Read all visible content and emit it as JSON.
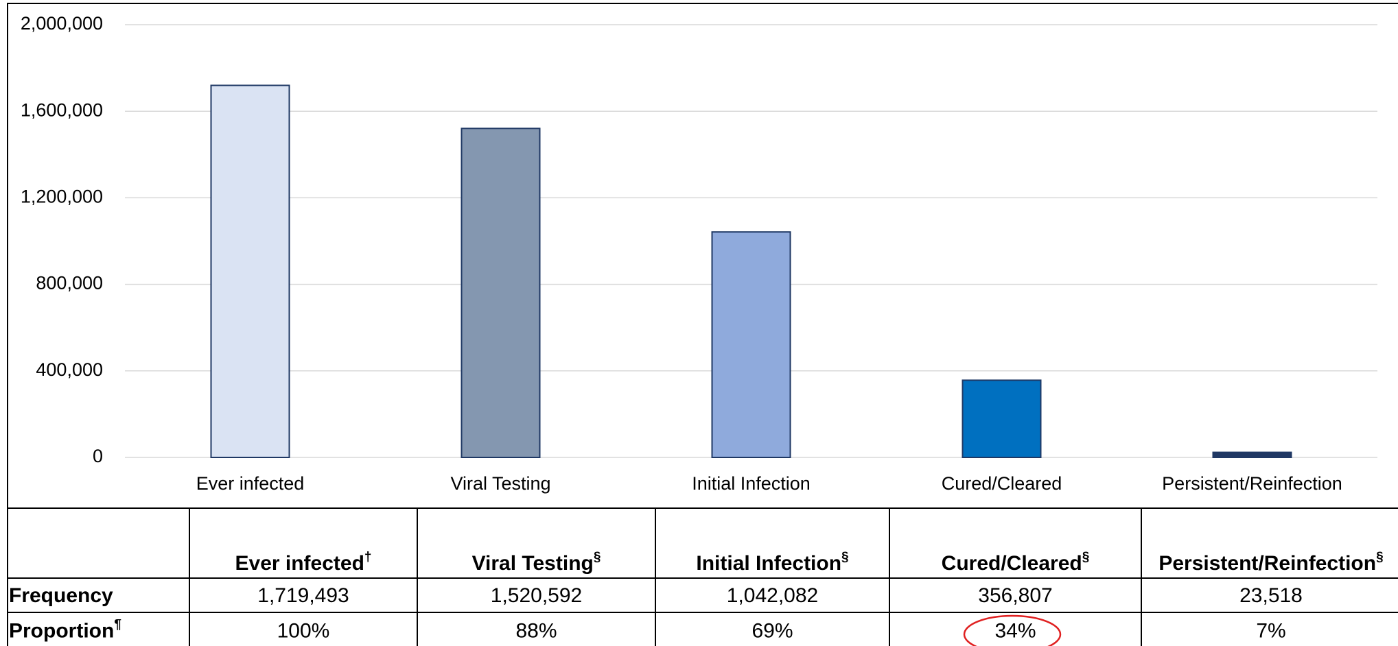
{
  "chart_data": {
    "type": "bar",
    "categories": [
      "Ever infected",
      "Viral Testing",
      "Initial Infection",
      "Cured/Cleared",
      "Persistent/Reinfection"
    ],
    "values": [
      1719493,
      1520592,
      1042082,
      356807,
      23518
    ],
    "colors": [
      "#dae3f3",
      "#8497b0",
      "#8faadc",
      "#0070c0",
      "#203864"
    ],
    "ylim": [
      0,
      2000000
    ],
    "yticks": [
      0,
      {
        "value": 400000,
        "label": "400,000"
      },
      {
        "value": 800000,
        "label": "800,000"
      },
      {
        "value": 1200000,
        "label": "1,200,000"
      },
      {
        "value": 1600000,
        "label": "1,600,000"
      },
      {
        "value": 2000000,
        "label": "2,000,000"
      }
    ],
    "grid": true
  },
  "table": {
    "columns": [
      {
        "label": "Ever infected",
        "note": "†"
      },
      {
        "label": "Viral Testing",
        "note": "§"
      },
      {
        "label": "Initial Infection",
        "note": "§"
      },
      {
        "label": "Cured/Cleared",
        "note": "§"
      },
      {
        "label": "Persistent/Reinfection",
        "note": "§"
      }
    ],
    "rows": [
      {
        "label": "Frequency",
        "cells": [
          "1,719,493",
          "1,520,592",
          "1,042,082",
          "356,807",
          "23,518"
        ]
      },
      {
        "label": "Proportion",
        "note": "¶",
        "cells": [
          "100%",
          "88%",
          "69%",
          "34%",
          "7%"
        ]
      }
    ]
  }
}
